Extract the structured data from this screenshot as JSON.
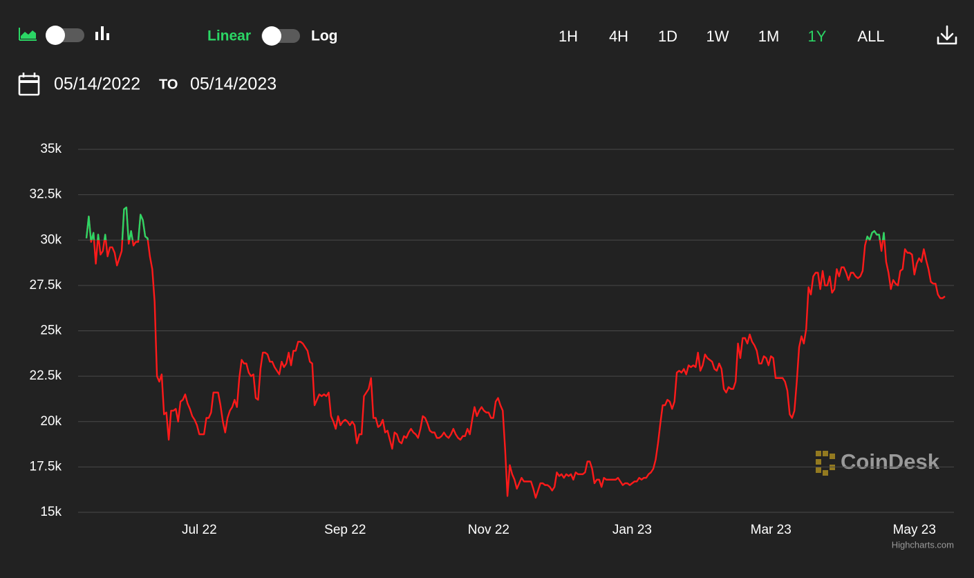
{
  "toolbar": {
    "scale_labels": [
      "Linear",
      "Log"
    ],
    "active_scale": 0,
    "ranges": [
      "1H",
      "4H",
      "1D",
      "1W",
      "1M",
      "1Y",
      "ALL"
    ],
    "active_range": 5
  },
  "date_range": {
    "from": "05/14/2022",
    "separator": "TO",
    "to": "05/14/2023"
  },
  "chart_data": {
    "type": "line",
    "log_scale": false,
    "grid": true,
    "color": "#ff1a1a",
    "zone_threshold": 30000,
    "zone_color": "#2bd665",
    "watermark": "CoinDesk",
    "credits": "Highcharts.com",
    "xlim": [
      "2022-05-14",
      "2023-05-14"
    ],
    "xticks": [
      {
        "value": "2022-07-01",
        "label": "Jul 22"
      },
      {
        "value": "2022-09-01",
        "label": "Sep 22"
      },
      {
        "value": "2022-11-01",
        "label": "Nov 22"
      },
      {
        "value": "2023-01-01",
        "label": "Jan 23"
      },
      {
        "value": "2023-03-01",
        "label": "Mar 23"
      },
      {
        "value": "2023-05-01",
        "label": "May 23"
      }
    ],
    "ylim": [
      15000,
      35000
    ],
    "yticks": [
      {
        "value": 15000,
        "label": "15k"
      },
      {
        "value": 17500,
        "label": "17.5k"
      },
      {
        "value": 20000,
        "label": "20k"
      },
      {
        "value": 22500,
        "label": "22.5k"
      },
      {
        "value": 25000,
        "label": "25k"
      },
      {
        "value": 27500,
        "label": "27.5k"
      },
      {
        "value": 30000,
        "label": "30k"
      },
      {
        "value": 32500,
        "label": "32.5k"
      },
      {
        "value": 35000,
        "label": "35k"
      }
    ],
    "x": [
      "2022-05-14",
      "2022-05-15",
      "2022-05-16",
      "2022-05-17",
      "2022-05-18",
      "2022-05-19",
      "2022-05-20",
      "2022-05-21",
      "2022-05-22",
      "2022-05-23",
      "2022-05-24",
      "2022-05-25",
      "2022-05-26",
      "2022-05-27",
      "2022-05-28",
      "2022-05-29",
      "2022-05-30",
      "2022-05-31",
      "2022-06-01",
      "2022-06-02",
      "2022-06-03",
      "2022-06-04",
      "2022-06-05",
      "2022-06-06",
      "2022-06-07",
      "2022-06-08",
      "2022-06-09",
      "2022-06-10",
      "2022-06-11",
      "2022-06-12",
      "2022-06-13",
      "2022-06-14",
      "2022-06-15",
      "2022-06-16",
      "2022-06-17",
      "2022-06-18",
      "2022-06-19",
      "2022-06-20",
      "2022-06-21",
      "2022-06-22",
      "2022-06-23",
      "2022-06-24",
      "2022-06-25",
      "2022-06-26",
      "2022-06-27",
      "2022-06-28",
      "2022-06-29",
      "2022-06-30",
      "2022-07-01",
      "2022-07-02",
      "2022-07-03",
      "2022-07-04",
      "2022-07-05",
      "2022-07-06",
      "2022-07-07",
      "2022-07-08",
      "2022-07-09",
      "2022-07-10",
      "2022-07-11",
      "2022-07-12",
      "2022-07-13",
      "2022-07-14",
      "2022-07-15",
      "2022-07-16",
      "2022-07-17",
      "2022-07-18",
      "2022-07-19",
      "2022-07-20",
      "2022-07-21",
      "2022-07-22",
      "2022-07-23",
      "2022-07-24",
      "2022-07-25",
      "2022-07-26",
      "2022-07-27",
      "2022-07-28",
      "2022-07-29",
      "2022-07-30",
      "2022-07-31",
      "2022-08-01",
      "2022-08-02",
      "2022-08-03",
      "2022-08-04",
      "2022-08-05",
      "2022-08-06",
      "2022-08-07",
      "2022-08-08",
      "2022-08-09",
      "2022-08-10",
      "2022-08-11",
      "2022-08-12",
      "2022-08-13",
      "2022-08-14",
      "2022-08-15",
      "2022-08-16",
      "2022-08-17",
      "2022-08-18",
      "2022-08-19",
      "2022-08-20",
      "2022-08-21",
      "2022-08-22",
      "2022-08-23",
      "2022-08-24",
      "2022-08-25",
      "2022-08-26",
      "2022-08-27",
      "2022-08-28",
      "2022-08-29",
      "2022-08-30",
      "2022-08-31",
      "2022-09-01",
      "2022-09-02",
      "2022-09-03",
      "2022-09-04",
      "2022-09-05",
      "2022-09-06",
      "2022-09-07",
      "2022-09-08",
      "2022-09-09",
      "2022-09-10",
      "2022-09-11",
      "2022-09-12",
      "2022-09-13",
      "2022-09-14",
      "2022-09-15",
      "2022-09-16",
      "2022-09-17",
      "2022-09-18",
      "2022-09-19",
      "2022-09-20",
      "2022-09-21",
      "2022-09-22",
      "2022-09-23",
      "2022-09-24",
      "2022-09-25",
      "2022-09-26",
      "2022-09-27",
      "2022-09-28",
      "2022-09-29",
      "2022-09-30",
      "2022-10-01",
      "2022-10-02",
      "2022-10-03",
      "2022-10-04",
      "2022-10-05",
      "2022-10-06",
      "2022-10-07",
      "2022-10-08",
      "2022-10-09",
      "2022-10-10",
      "2022-10-11",
      "2022-10-12",
      "2022-10-13",
      "2022-10-14",
      "2022-10-15",
      "2022-10-16",
      "2022-10-17",
      "2022-10-18",
      "2022-10-19",
      "2022-10-20",
      "2022-10-21",
      "2022-10-22",
      "2022-10-23",
      "2022-10-24",
      "2022-10-25",
      "2022-10-26",
      "2022-10-27",
      "2022-10-28",
      "2022-10-29",
      "2022-10-30",
      "2022-10-31",
      "2022-11-01",
      "2022-11-02",
      "2022-11-03",
      "2022-11-04",
      "2022-11-05",
      "2022-11-06",
      "2022-11-07",
      "2022-11-08",
      "2022-11-09",
      "2022-11-10",
      "2022-11-11",
      "2022-11-12",
      "2022-11-13",
      "2022-11-14",
      "2022-11-15",
      "2022-11-16",
      "2022-11-17",
      "2022-11-18",
      "2022-11-19",
      "2022-11-20",
      "2022-11-21",
      "2022-11-22",
      "2022-11-23",
      "2022-11-24",
      "2022-11-25",
      "2022-11-26",
      "2022-11-27",
      "2022-11-28",
      "2022-11-29",
      "2022-11-30",
      "2022-12-01",
      "2022-12-02",
      "2022-12-03",
      "2022-12-04",
      "2022-12-05",
      "2022-12-06",
      "2022-12-07",
      "2022-12-08",
      "2022-12-09",
      "2022-12-10",
      "2022-12-11",
      "2022-12-12",
      "2022-12-13",
      "2022-12-14",
      "2022-12-15",
      "2022-12-16",
      "2022-12-17",
      "2022-12-18",
      "2022-12-19",
      "2022-12-20",
      "2022-12-21",
      "2022-12-22",
      "2022-12-23",
      "2022-12-24",
      "2022-12-25",
      "2022-12-26",
      "2022-12-27",
      "2022-12-28",
      "2022-12-29",
      "2022-12-30",
      "2022-12-31",
      "2023-01-01",
      "2023-01-02",
      "2023-01-03",
      "2023-01-04",
      "2023-01-05",
      "2023-01-06",
      "2023-01-07",
      "2023-01-08",
      "2023-01-09",
      "2023-01-10",
      "2023-01-11",
      "2023-01-12",
      "2023-01-13",
      "2023-01-14",
      "2023-01-15",
      "2023-01-16",
      "2023-01-17",
      "2023-01-18",
      "2023-01-19",
      "2023-01-20",
      "2023-01-21",
      "2023-01-22",
      "2023-01-23",
      "2023-01-24",
      "2023-01-25",
      "2023-01-26",
      "2023-01-27",
      "2023-01-28",
      "2023-01-29",
      "2023-01-30",
      "2023-01-31",
      "2023-02-01",
      "2023-02-02",
      "2023-02-03",
      "2023-02-04",
      "2023-02-05",
      "2023-02-06",
      "2023-02-07",
      "2023-02-08",
      "2023-02-09",
      "2023-02-10",
      "2023-02-11",
      "2023-02-12",
      "2023-02-13",
      "2023-02-14",
      "2023-02-15",
      "2023-02-16",
      "2023-02-17",
      "2023-02-18",
      "2023-02-19",
      "2023-02-20",
      "2023-02-21",
      "2023-02-22",
      "2023-02-23",
      "2023-02-24",
      "2023-02-25",
      "2023-02-26",
      "2023-02-27",
      "2023-02-28",
      "2023-03-01",
      "2023-03-02",
      "2023-03-03",
      "2023-03-04",
      "2023-03-05",
      "2023-03-06",
      "2023-03-07",
      "2023-03-08",
      "2023-03-09",
      "2023-03-10",
      "2023-03-11",
      "2023-03-12",
      "2023-03-13",
      "2023-03-14",
      "2023-03-15",
      "2023-03-16",
      "2023-03-17",
      "2023-03-18",
      "2023-03-19",
      "2023-03-20",
      "2023-03-21",
      "2023-03-22",
      "2023-03-23",
      "2023-03-24",
      "2023-03-25",
      "2023-03-26",
      "2023-03-27",
      "2023-03-28",
      "2023-03-29",
      "2023-03-30",
      "2023-03-31",
      "2023-04-01",
      "2023-04-02",
      "2023-04-03",
      "2023-04-04",
      "2023-04-05",
      "2023-04-06",
      "2023-04-07",
      "2023-04-08",
      "2023-04-09",
      "2023-04-10",
      "2023-04-11",
      "2023-04-12",
      "2023-04-13",
      "2023-04-14",
      "2023-04-15",
      "2023-04-16",
      "2023-04-17",
      "2023-04-18",
      "2023-04-19",
      "2023-04-20",
      "2023-04-21",
      "2023-04-22",
      "2023-04-23",
      "2023-04-24",
      "2023-04-25",
      "2023-04-26",
      "2023-04-27",
      "2023-04-28",
      "2023-04-29",
      "2023-04-30",
      "2023-05-01",
      "2023-05-02",
      "2023-05-03",
      "2023-05-04",
      "2023-05-05",
      "2023-05-06",
      "2023-05-07",
      "2023-05-08",
      "2023-05-09",
      "2023-05-10",
      "2023-05-11",
      "2023-05-12",
      "2023-05-13",
      "2023-05-14"
    ],
    "values": [
      30100,
      31300,
      29900,
      30400,
      28700,
      30300,
      29200,
      29400,
      30300,
      29100,
      29600,
      29600,
      29300,
      28600,
      29000,
      29400,
      31700,
      31800,
      29800,
      30500,
      29700,
      29900,
      29900,
      31400,
      31100,
      30200,
      30100,
      29100,
      28400,
      26600,
      22500,
      22200,
      22600,
      20400,
      20500,
      19000,
      20600,
      20600,
      20700,
      20000,
      21100,
      21200,
      21500,
      21000,
      20700,
      20300,
      20100,
      19800,
      19300,
      19300,
      19300,
      20200,
      20200,
      20500,
      21600,
      21600,
      21600,
      20900,
      20000,
      19400,
      20200,
      20600,
      20800,
      21200,
      20800,
      22400,
      23400,
      23200,
      23200,
      22700,
      22500,
      22600,
      21300,
      21200,
      22900,
      23800,
      23800,
      23700,
      23300,
      23300,
      23000,
      22800,
      22600,
      23300,
      23000,
      23200,
      23800,
      23100,
      23900,
      23900,
      24400,
      24400,
      24300,
      24100,
      23900,
      23300,
      23200,
      20900,
      21200,
      21500,
      21400,
      21500,
      21400,
      21600,
      20300,
      20000,
      19600,
      20300,
      19800,
      20000,
      20100,
      20000,
      19800,
      20000,
      19800,
      18800,
      19300,
      19300,
      21400,
      21600,
      21800,
      22400,
      20200,
      20200,
      19700,
      19800,
      20100,
      19400,
      19500,
      19000,
      18500,
      19400,
      19300,
      18900,
      18800,
      19200,
      19100,
      19400,
      19600,
      19400,
      19300,
      19100,
      19600,
      20300,
      20200,
      19900,
      19500,
      19400,
      19400,
      19100,
      19100,
      19200,
      19400,
      19200,
      19100,
      19300,
      19600,
      19300,
      19100,
      19000,
      19200,
      19200,
      19600,
      19300,
      20100,
      20800,
      20300,
      20600,
      20800,
      20600,
      20500,
      20500,
      20200,
      20200,
      21100,
      21300,
      20900,
      20600,
      18500,
      15900,
      17600,
      17100,
      16800,
      16300,
      16600,
      16900,
      16700,
      16700,
      16700,
      16700,
      16300,
      15800,
      16200,
      16600,
      16600,
      16500,
      16500,
      16400,
      16200,
      16400,
      17200,
      17000,
      17100,
      16900,
      17100,
      17000,
      17100,
      16800,
      17200,
      17100,
      17100,
      17100,
      17200,
      17800,
      17800,
      17400,
      16600,
      16800,
      16800,
      16400,
      16900,
      16800,
      16800,
      16800,
      16800,
      16800,
      16900,
      16700,
      16500,
      16600,
      16600,
      16500,
      16600,
      16700,
      16700,
      16900,
      16800,
      16900,
      16900,
      17100,
      17200,
      17400,
      17900,
      18800,
      19900,
      20900,
      20900,
      21200,
      21100,
      20700,
      21100,
      22700,
      22800,
      22700,
      22900,
      22600,
      23100,
      23000,
      23100,
      23000,
      23800,
      22800,
      23100,
      23700,
      23500,
      23400,
      23300,
      22900,
      22800,
      23200,
      22900,
      21800,
      21600,
      21900,
      21800,
      21800,
      22200,
      24300,
      23500,
      24600,
      24600,
      24300,
      24800,
      24400,
      24200,
      23900,
      23200,
      23200,
      23600,
      23500,
      23100,
      23600,
      23500,
      22400,
      22400,
      22400,
      22400,
      22200,
      21700,
      20400,
      20200,
      20600,
      22200,
      24100,
      24700,
      24300,
      25100,
      27400,
      27000,
      28000,
      28200,
      28200,
      27300,
      28300,
      27500,
      27500,
      28000,
      27100,
      27300,
      28400,
      28000,
      28500,
      28500,
      28200,
      27800,
      28200,
      28200,
      28000,
      27900,
      28000,
      28300,
      29700,
      30200,
      30000,
      30400,
      30500,
      30300,
      30300,
      29400,
      30400,
      28800,
      28200,
      27300,
      27800,
      27600,
      27500,
      28300,
      28400,
      29500,
      29300,
      29300,
      29200,
      28100,
      28700,
      29000,
      28800,
      29500,
      28900,
      28400,
      27700,
      27600,
      27600,
      27000,
      26800,
      26800,
      26900
    ]
  }
}
